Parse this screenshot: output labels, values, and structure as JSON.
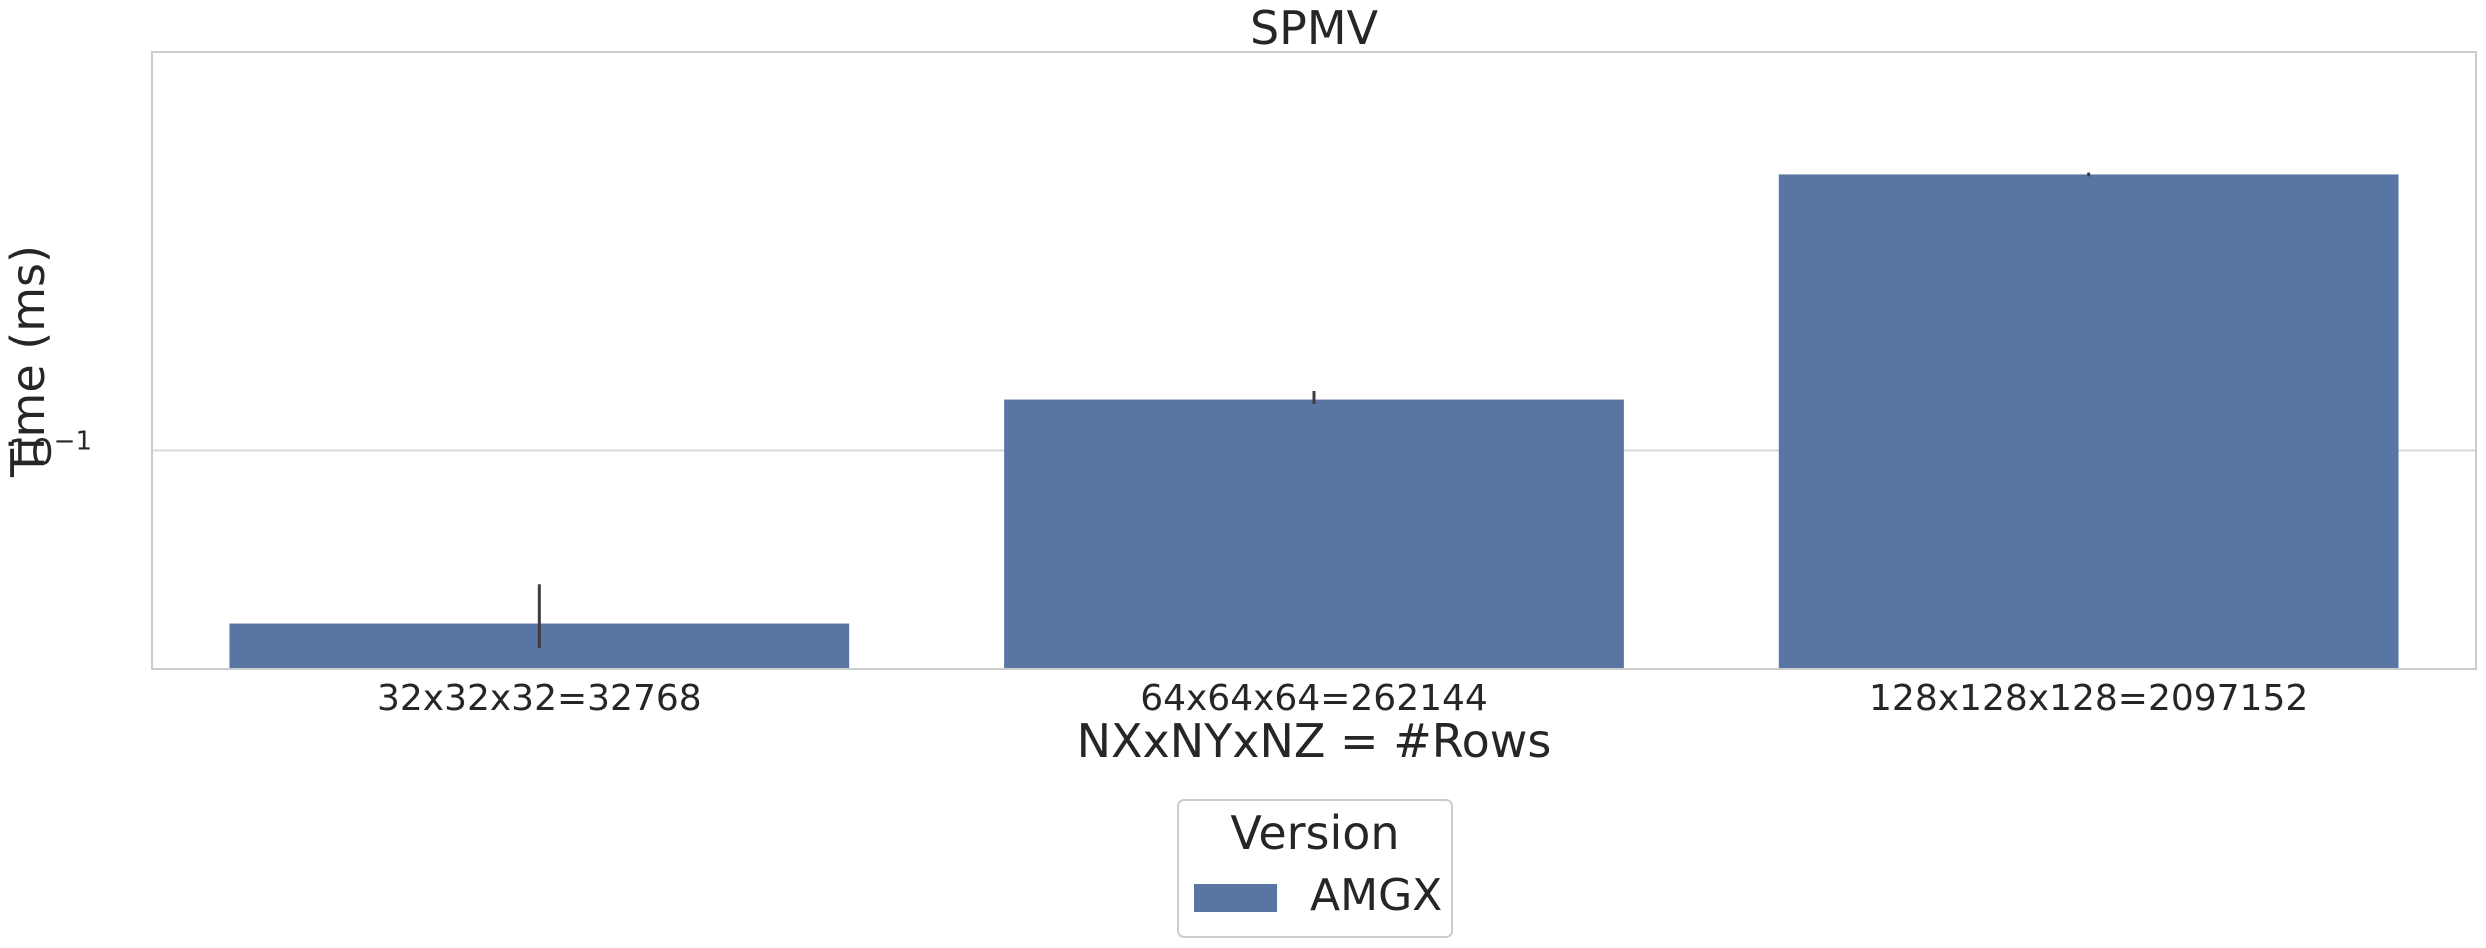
{
  "chart_data": {
    "type": "bar",
    "title": "SPMV",
    "xlabel": "NXxNYxNZ = #Rows",
    "ylabel": "Time (ms)",
    "yscale": "log",
    "ylim": [
      0.0371,
      0.61
    ],
    "ytick_labels": [
      {
        "value": 0.1,
        "base": "10",
        "exponent": "−1"
      }
    ],
    "categories": [
      "32x32x32=32768",
      "64x64x64=262144",
      "128x128x128=2097152"
    ],
    "series": [
      {
        "name": "AMGX",
        "values": [
          0.0456,
          0.126,
          0.35
        ],
        "error_low": [
          0.0408,
          0.1235,
          0.347
        ],
        "error_high": [
          0.0545,
          0.131,
          0.353
        ]
      }
    ],
    "colors": {
      "AMGX": "#5875a4",
      "errorbar": "#3d3d3d",
      "grid": "#d9d9d9",
      "frame": "#cccccc"
    },
    "grid": "horizontal",
    "legend": {
      "title": "Version",
      "placement": "bottom-center"
    }
  }
}
